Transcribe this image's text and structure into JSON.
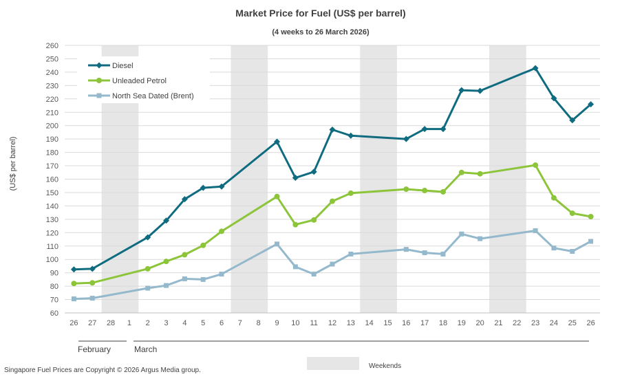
{
  "chart_data": {
    "type": "line",
    "title": "Market Price for Fuel (US$ per barrel)",
    "subtitle": "(4 weeks to 26 March 2026)",
    "ylabel": "(US$ per barrel)",
    "xlabel": "",
    "ylim": [
      60,
      260
    ],
    "ytick_step": 10,
    "grid": true,
    "legend_position": "top-left",
    "categories": [
      "26",
      "27",
      "28",
      "1",
      "2",
      "3",
      "4",
      "5",
      "6",
      "7",
      "8",
      "9",
      "10",
      "11",
      "12",
      "13",
      "14",
      "15",
      "16",
      "17",
      "18",
      "19",
      "20",
      "21",
      "22",
      "23",
      "24",
      "25",
      "26"
    ],
    "weekend_ranges": [
      [
        "28",
        "1"
      ],
      [
        "7",
        "8"
      ],
      [
        "14",
        "15"
      ],
      [
        "21",
        "22"
      ]
    ],
    "months": [
      {
        "label": "February",
        "start": "26",
        "end": "28"
      },
      {
        "label": "March",
        "start": "1",
        "end": "26"
      }
    ],
    "series": [
      {
        "name": "Diesel",
        "color": "#0f6b7f",
        "marker": "diamond",
        "values": [
          92.5,
          93,
          null,
          null,
          116.5,
          129,
          145,
          153.5,
          154.5,
          null,
          null,
          188,
          161,
          165.5,
          197,
          192.5,
          null,
          null,
          190,
          197.5,
          197.5,
          226.5,
          226,
          null,
          null,
          243,
          220.5,
          204,
          216
        ]
      },
      {
        "name": "Unleaded Petrol",
        "color": "#8cc43a",
        "marker": "circle",
        "values": [
          82,
          82.5,
          null,
          null,
          93,
          98.5,
          103.5,
          110.5,
          121,
          null,
          null,
          147,
          126,
          129.5,
          143.5,
          149.5,
          null,
          null,
          152.5,
          151.5,
          150.5,
          165,
          164,
          null,
          null,
          170.5,
          146,
          134.5,
          132
        ]
      },
      {
        "name": "North Sea Dated (Brent)",
        "color": "#94b8cc",
        "marker": "square",
        "values": [
          70.5,
          71,
          null,
          null,
          78.5,
          80.5,
          85.5,
          85,
          89,
          null,
          null,
          111.5,
          94.5,
          89,
          96.5,
          104,
          null,
          null,
          107.5,
          105,
          104,
          119,
          115.5,
          null,
          null,
          121.5,
          108.5,
          106,
          113.5
        ]
      }
    ]
  },
  "weekends_label": "Weekends",
  "footer": "Singapore Fuel Prices are Copyright © 2026 Argus Media group."
}
